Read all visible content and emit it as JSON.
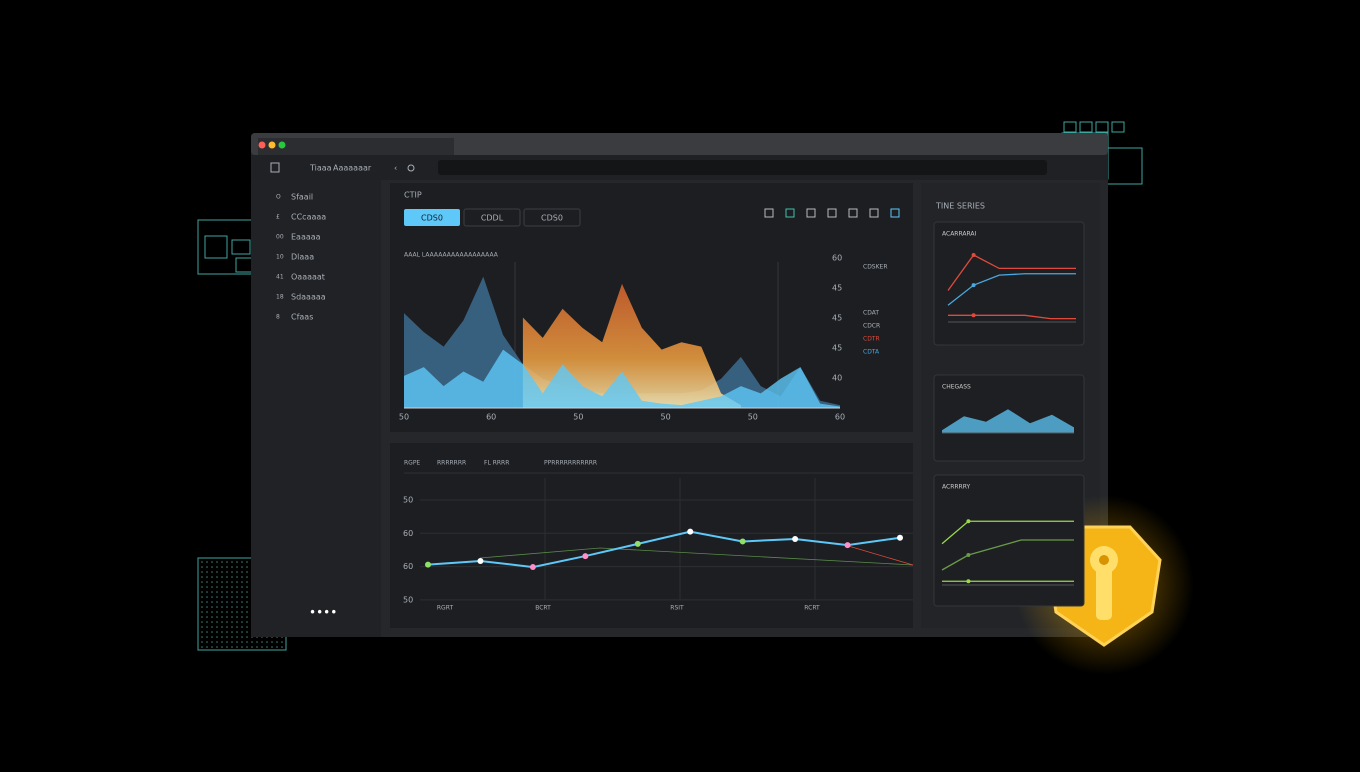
{
  "toolbar": {
    "menu": [
      "Tiaaa",
      "Aaaaaaar"
    ]
  },
  "sidebar": {
    "icons": [
      "O",
      "£",
      "00",
      "10",
      "41",
      "18",
      "8"
    ],
    "items": [
      "Sfaail",
      "CCcaaaa",
      "Eaaaaa",
      "Dlaaa",
      "Oaaaaat",
      "Sdaaaaa",
      "Cfaas"
    ]
  },
  "area_chart": {
    "title": "CTIP",
    "tabs": [
      "CDS0",
      "CDDL",
      "CDS0"
    ],
    "subtitle": "AAAL LAAAAAAAAAAAAAAAAA",
    "x_labels": [
      "50",
      "60",
      "50",
      "50",
      "50",
      "60"
    ],
    "y_labels": [
      "60",
      "45",
      "45",
      "45",
      "40"
    ],
    "legend": [
      "CDSKER",
      "CDAT",
      "CDCR",
      "CDTR",
      "CDTA"
    ],
    "ylim": [
      0,
      100
    ],
    "series": [
      {
        "color": "#3f6f96",
        "values": [
          65,
          52,
          42,
          60,
          90,
          50,
          30,
          20,
          15,
          12,
          10,
          10,
          10,
          10,
          10,
          12,
          20,
          35,
          15,
          8,
          28,
          5,
          2
        ]
      },
      {
        "color": "#d9642f",
        "values": [
          null,
          null,
          null,
          null,
          null,
          null,
          62,
          48,
          68,
          55,
          45,
          85,
          55,
          40,
          45,
          42,
          10,
          2,
          null,
          null,
          null,
          null,
          null
        ]
      },
      {
        "color": "#5ec8f8",
        "values": [
          22,
          28,
          15,
          25,
          18,
          40,
          30,
          10,
          30,
          15,
          8,
          25,
          5,
          3,
          2,
          5,
          8,
          15,
          10,
          20,
          28,
          3,
          1
        ]
      }
    ]
  },
  "line_chart": {
    "tabs": [
      "RGPE",
      "RRRRRRR",
      "FL RRRR",
      "PPRRRRRRRRRRR"
    ],
    "y_labels": [
      "50",
      "60",
      "60",
      "50"
    ],
    "x_labels": [
      "RGRT",
      "BCRT",
      "RSIT",
      "RCRT"
    ],
    "ylim": [
      0,
      100
    ],
    "color": "#5ec8f8",
    "values": [
      29,
      32,
      27,
      36,
      46,
      56,
      48,
      50,
      45,
      51
    ],
    "point_colors": [
      "#8ee06a",
      "#ffffff",
      "#ff8fc8",
      "#ff8fc8",
      "#8ee06a",
      "#ffffff",
      "#8ee06a",
      "#ffffff",
      "#ff8fc8",
      "#ffffff"
    ]
  },
  "side": {
    "title": "TINE SERIES",
    "cards": [
      {
        "title": "ACARRARAI",
        "ylim": [
          0,
          100
        ],
        "series": [
          {
            "color": "#e04a3c",
            "values": [
              47,
              100,
              80,
              80,
              80,
              80
            ]
          },
          {
            "color": "#e04a3c",
            "values": [
              10,
              10,
              10,
              10,
              5,
              5
            ]
          },
          {
            "color": "#4aa8e0",
            "values": [
              25,
              55,
              70,
              72,
              72,
              72
            ]
          }
        ],
        "area": false
      },
      {
        "title": "CHEGASS",
        "ylim": [
          0,
          100
        ],
        "series": [
          {
            "color": "#5ec8f8",
            "values": [
              10,
              60,
              40,
              85,
              35,
              65,
              20
            ]
          }
        ],
        "area": true
      },
      {
        "title": "ACRRRRY",
        "ylim": [
          0,
          100
        ],
        "series": [
          {
            "color": "#9ad84a",
            "values": [
              55,
              85,
              85,
              85,
              85,
              85
            ]
          },
          {
            "color": "#6a9a4a",
            "values": [
              20,
              40,
              50,
              60,
              60,
              60
            ]
          },
          {
            "color": "#9ad84a",
            "values": [
              5,
              5,
              5,
              5,
              5,
              5
            ]
          }
        ],
        "area": false
      }
    ]
  }
}
